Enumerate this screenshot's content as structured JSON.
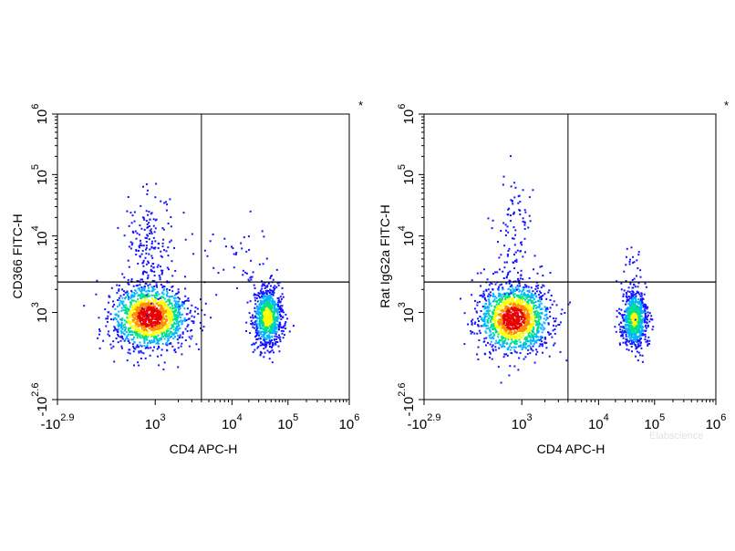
{
  "chart_data": [
    {
      "type": "scatter",
      "panel_marker": "*",
      "xlabel": "CD4 APC-H",
      "ylabel": "CD366 FITC-H",
      "x_scale": "biexponential",
      "y_scale": "biexponential",
      "x_ticks": [
        {
          "base": "-10",
          "exp": "2.9"
        },
        {
          "base": "10",
          "exp": "3"
        },
        {
          "base": "10",
          "exp": "4"
        },
        {
          "base": "10",
          "exp": "5"
        },
        {
          "base": "10",
          "exp": "6"
        }
      ],
      "y_ticks": [
        {
          "base": "-10",
          "exp": "2.6"
        },
        {
          "base": "10",
          "exp": "3"
        },
        {
          "base": "10",
          "exp": "4"
        },
        {
          "base": "10",
          "exp": "5"
        },
        {
          "base": "10",
          "exp": "6"
        }
      ],
      "quadrant_gate": {
        "x": 4000,
        "y": 2500
      },
      "populations": [
        {
          "name": "CD4-negative, CD366-low",
          "x": 430,
          "y": 600,
          "relative_density": 1.0
        },
        {
          "name": "CD4-positive, CD366-low",
          "x": 42000,
          "y": 560,
          "relative_density": 0.6
        },
        {
          "name": "CD4-negative, CD366-high",
          "x": 430,
          "y": 8000,
          "relative_density": 0.12
        },
        {
          "name": "CD4-positive, CD366-high",
          "x": 12000,
          "y": 5000,
          "relative_density": 0.03
        }
      ]
    },
    {
      "type": "scatter",
      "panel_marker": "*",
      "xlabel": "CD4 APC-H",
      "ylabel": "Rat IgG2a FITC-H",
      "x_scale": "biexponential",
      "y_scale": "biexponential",
      "x_ticks": [
        {
          "base": "-10",
          "exp": "2.9"
        },
        {
          "base": "10",
          "exp": "3"
        },
        {
          "base": "10",
          "exp": "4"
        },
        {
          "base": "10",
          "exp": "5"
        },
        {
          "base": "10",
          "exp": "6"
        }
      ],
      "y_ticks": [
        {
          "base": "-10",
          "exp": "2.6"
        },
        {
          "base": "10",
          "exp": "3"
        },
        {
          "base": "10",
          "exp": "4"
        },
        {
          "base": "10",
          "exp": "5"
        },
        {
          "base": "10",
          "exp": "6"
        }
      ],
      "quadrant_gate": {
        "x": 4000,
        "y": 2500
      },
      "populations": [
        {
          "name": "CD4-negative, isotype-low",
          "x": 300,
          "y": 450,
          "relative_density": 1.0
        },
        {
          "name": "CD4-positive, isotype-low",
          "x": 42000,
          "y": 430,
          "relative_density": 0.55
        },
        {
          "name": "CD4-negative, isotype-high",
          "x": 300,
          "y": 9000,
          "relative_density": 0.07
        },
        {
          "name": "CD4-positive, isotype-high",
          "x": 40000,
          "y": 3500,
          "relative_density": 0.02
        }
      ]
    }
  ],
  "watermark": "Elabscience",
  "colors": {
    "density_scale": [
      "#1414ff",
      "#00b4ff",
      "#00e08c",
      "#ffff00",
      "#ff8c00",
      "#e60000"
    ],
    "axis": "#000000"
  }
}
